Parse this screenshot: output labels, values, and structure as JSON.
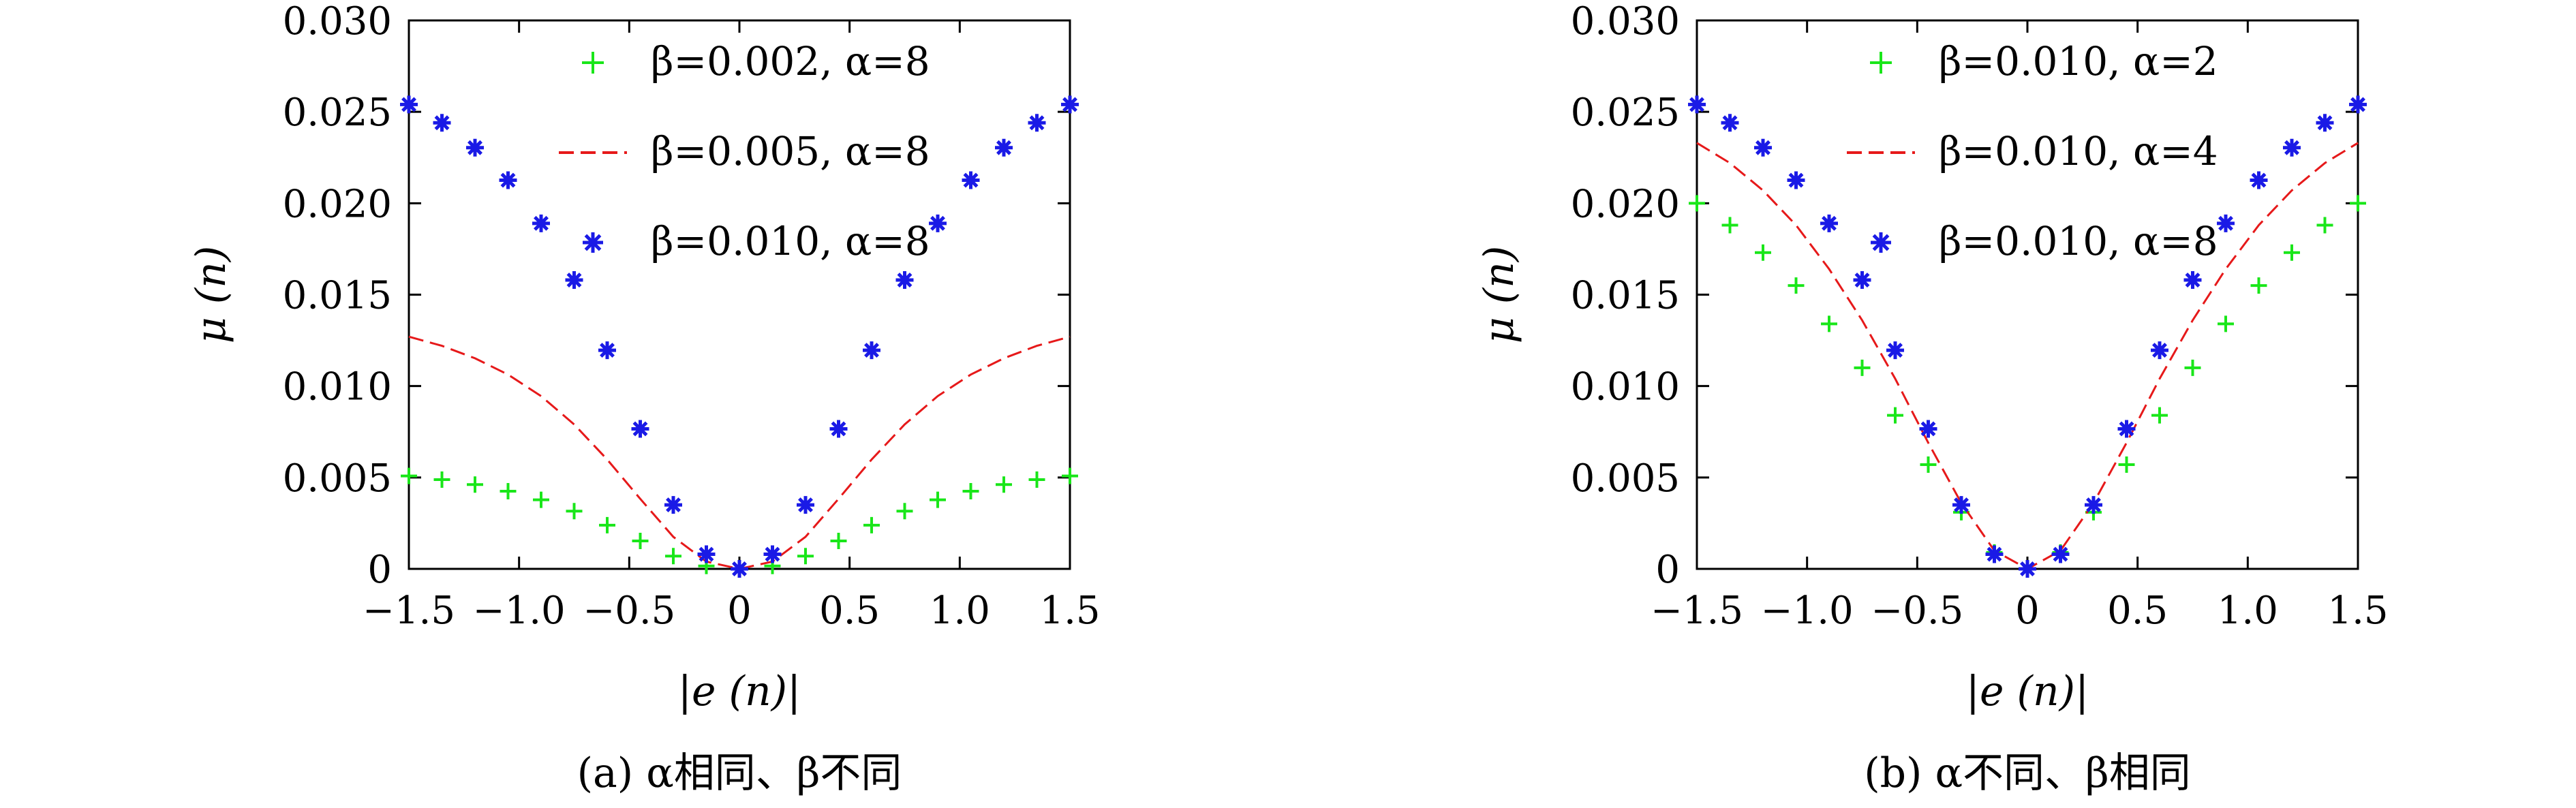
{
  "chart_data": [
    {
      "type": "scatter",
      "caption": "(a) α相同、β不同",
      "xlabel": "|e (n)|",
      "ylabel": "μ (n)",
      "xlim": [
        -1.5,
        1.5
      ],
      "ylim": [
        0,
        0.03
      ],
      "xticks": [
        "−1.5",
        "−1.0",
        "−0.5",
        "0",
        "0.5",
        "1.0",
        "1.5"
      ],
      "yticks": [
        "0",
        "0.005",
        "0.010",
        "0.015",
        "0.020",
        "0.025",
        "0.030"
      ],
      "legend_position": "top-center",
      "series": [
        {
          "name": "β=0.002, α=8",
          "style": "plus",
          "color": "#19e619",
          "points": [
            [
              -1.5,
              0.00508
            ],
            [
              -1.35,
              0.00488
            ],
            [
              -1.2,
              0.00461
            ],
            [
              -1.05,
              0.00425
            ],
            [
              -0.9,
              0.00378
            ],
            [
              -0.75,
              0.00316
            ],
            [
              -0.6,
              0.00239
            ],
            [
              -0.45,
              0.00153
            ],
            [
              -0.3,
              0.0007
            ],
            [
              -0.15,
              0.00016
            ],
            [
              0,
              0
            ],
            [
              0.15,
              0.00016
            ],
            [
              0.3,
              0.0007
            ],
            [
              0.45,
              0.00153
            ],
            [
              0.6,
              0.00239
            ],
            [
              0.75,
              0.00316
            ],
            [
              0.9,
              0.00378
            ],
            [
              1.05,
              0.00425
            ],
            [
              1.2,
              0.00461
            ],
            [
              1.35,
              0.00488
            ],
            [
              1.5,
              0.00508
            ]
          ]
        },
        {
          "name": "β=0.005, α=8",
          "style": "dashed",
          "color": "#e6191a",
          "points": [
            [
              -1.5,
              0.0127
            ],
            [
              -1.35,
              0.0122
            ],
            [
              -1.2,
              0.01152
            ],
            [
              -1.05,
              0.01063
            ],
            [
              -0.9,
              0.00945
            ],
            [
              -0.75,
              0.0079
            ],
            [
              -0.6,
              0.00598
            ],
            [
              -0.45,
              0.00383
            ],
            [
              -0.3,
              0.00175
            ],
            [
              -0.15,
              0.0004
            ],
            [
              0,
              0
            ],
            [
              0.15,
              0.0004
            ],
            [
              0.3,
              0.00175
            ],
            [
              0.45,
              0.00383
            ],
            [
              0.6,
              0.00598
            ],
            [
              0.75,
              0.0079
            ],
            [
              0.9,
              0.00945
            ],
            [
              1.05,
              0.01063
            ],
            [
              1.2,
              0.01152
            ],
            [
              1.35,
              0.0122
            ],
            [
              1.5,
              0.0127
            ]
          ]
        },
        {
          "name": "β=0.010, α=8",
          "style": "star",
          "color": "#1a1ae6",
          "points": [
            [
              -1.5,
              0.0254
            ],
            [
              -1.35,
              0.0244
            ],
            [
              -1.2,
              0.02304
            ],
            [
              -1.05,
              0.02126
            ],
            [
              -0.9,
              0.0189
            ],
            [
              -0.75,
              0.0158
            ],
            [
              -0.6,
              0.01196
            ],
            [
              -0.45,
              0.00766
            ],
            [
              -0.3,
              0.0035
            ],
            [
              -0.15,
              0.0008
            ],
            [
              0,
              0
            ],
            [
              0.15,
              0.0008
            ],
            [
              0.3,
              0.0035
            ],
            [
              0.45,
              0.00766
            ],
            [
              0.6,
              0.01196
            ],
            [
              0.75,
              0.0158
            ],
            [
              0.9,
              0.0189
            ],
            [
              1.05,
              0.02126
            ],
            [
              1.2,
              0.02304
            ],
            [
              1.35,
              0.0244
            ],
            [
              1.5,
              0.0254
            ]
          ]
        }
      ]
    },
    {
      "type": "scatter",
      "caption": "(b) α不同、β相同",
      "xlabel": "|e (n)|",
      "ylabel": "μ (n)",
      "xlim": [
        -1.5,
        1.5
      ],
      "ylim": [
        0,
        0.03
      ],
      "xticks": [
        "−1.5",
        "−1.0",
        "−0.5",
        "0",
        "0.5",
        "1.0",
        "1.5"
      ],
      "yticks": [
        "0",
        "0.005",
        "0.010",
        "0.015",
        "0.020",
        "0.025",
        "0.030"
      ],
      "legend_position": "top-center",
      "series": [
        {
          "name": "β=0.010, α=2",
          "style": "plus",
          "color": "#19e619",
          "points": [
            [
              -1.5,
              0.02
            ],
            [
              -1.35,
              0.0188
            ],
            [
              -1.2,
              0.0173
            ],
            [
              -1.05,
              0.0155
            ],
            [
              -0.9,
              0.0134
            ],
            [
              -0.75,
              0.011
            ],
            [
              -0.6,
              0.0084
            ],
            [
              -0.45,
              0.0057
            ],
            [
              -0.3,
              0.0031
            ],
            [
              -0.15,
              0.0009
            ],
            [
              0,
              0
            ],
            [
              0.15,
              0.0009
            ],
            [
              0.3,
              0.0031
            ],
            [
              0.45,
              0.0057
            ],
            [
              0.6,
              0.0084
            ],
            [
              0.75,
              0.011
            ],
            [
              0.9,
              0.0134
            ],
            [
              1.05,
              0.0155
            ],
            [
              1.2,
              0.0173
            ],
            [
              1.35,
              0.0188
            ],
            [
              1.5,
              0.02
            ]
          ]
        },
        {
          "name": "β=0.010, α=4",
          "style": "dashed",
          "color": "#e6191a",
          "points": [
            [
              -1.5,
              0.0233
            ],
            [
              -1.35,
              0.0222
            ],
            [
              -1.2,
              0.0207
            ],
            [
              -1.05,
              0.0188
            ],
            [
              -0.9,
              0.0164
            ],
            [
              -0.75,
              0.0136
            ],
            [
              -0.6,
              0.0104
            ],
            [
              -0.45,
              0.0069
            ],
            [
              -0.3,
              0.0036
            ],
            [
              -0.15,
              0.001
            ],
            [
              0,
              0
            ],
            [
              0.15,
              0.001
            ],
            [
              0.3,
              0.0036
            ],
            [
              0.45,
              0.0069
            ],
            [
              0.6,
              0.0104
            ],
            [
              0.75,
              0.0136
            ],
            [
              0.9,
              0.0164
            ],
            [
              1.05,
              0.0188
            ],
            [
              1.2,
              0.0207
            ],
            [
              1.35,
              0.0222
            ],
            [
              1.5,
              0.0233
            ]
          ]
        },
        {
          "name": "β=0.010, α=8",
          "style": "star",
          "color": "#1a1ae6",
          "points": [
            [
              -1.5,
              0.0254
            ],
            [
              -1.35,
              0.0244
            ],
            [
              -1.2,
              0.02304
            ],
            [
              -1.05,
              0.02126
            ],
            [
              -0.9,
              0.0189
            ],
            [
              -0.75,
              0.0158
            ],
            [
              -0.6,
              0.01196
            ],
            [
              -0.45,
              0.00766
            ],
            [
              -0.3,
              0.0035
            ],
            [
              -0.15,
              0.0008
            ],
            [
              0,
              0
            ],
            [
              0.15,
              0.0008
            ],
            [
              0.3,
              0.0035
            ],
            [
              0.45,
              0.00766
            ],
            [
              0.6,
              0.01196
            ],
            [
              0.75,
              0.0158
            ],
            [
              0.9,
              0.0189
            ],
            [
              1.05,
              0.02126
            ],
            [
              1.2,
              0.02304
            ],
            [
              1.35,
              0.0244
            ],
            [
              1.5,
              0.0254
            ]
          ]
        }
      ]
    }
  ]
}
